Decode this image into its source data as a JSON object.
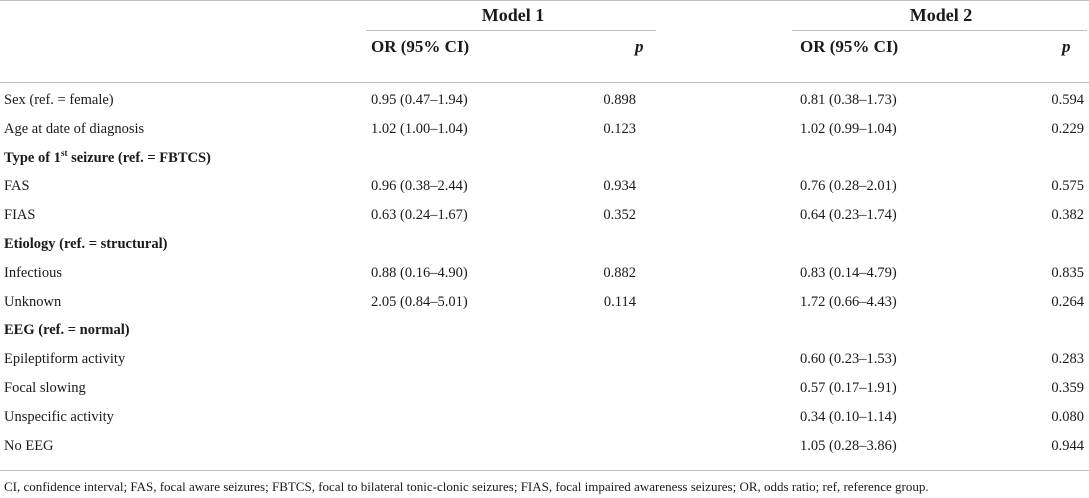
{
  "header": {
    "model1_title": "Model 1",
    "model2_title": "Model 2",
    "or_label_1": "OR (95% CI)",
    "p_label_1": "p",
    "or_label_2": "OR (95% CI)",
    "p_label_2": "p"
  },
  "rows": [
    {
      "label": "Sex (ref. = female)",
      "group": false,
      "m1_or": "0.95 (0.47–1.94)",
      "m1_p": "0.898",
      "m2_or": "0.81 (0.38–1.73)",
      "m2_p": "0.594"
    },
    {
      "label": "Age at date of diagnosis",
      "group": false,
      "m1_or": "1.02 (1.00–1.04)",
      "m1_p": "0.123",
      "m2_or": "1.02 (0.99–1.04)",
      "m2_p": "0.229"
    },
    {
      "label_pre": "Type of 1",
      "label_sup": "st",
      "label_post": " seizure (ref. = FBTCS)",
      "group": true,
      "m1_or": "",
      "m1_p": "",
      "m2_or": "",
      "m2_p": ""
    },
    {
      "label": "FAS",
      "group": false,
      "m1_or": "0.96 (0.38–2.44)",
      "m1_p": "0.934",
      "m2_or": "0.76 (0.28–2.01)",
      "m2_p": "0.575"
    },
    {
      "label": "FIAS",
      "group": false,
      "m1_or": "0.63 (0.24–1.67)",
      "m1_p": "0.352",
      "m2_or": "0.64 (0.23–1.74)",
      "m2_p": "0.382"
    },
    {
      "label": "Etiology (ref. = structural)",
      "group": true,
      "m1_or": "",
      "m1_p": "",
      "m2_or": "",
      "m2_p": ""
    },
    {
      "label": "Infectious",
      "group": false,
      "m1_or": "0.88 (0.16–4.90)",
      "m1_p": "0.882",
      "m2_or": "0.83 (0.14–4.79)",
      "m2_p": "0.835"
    },
    {
      "label": "Unknown",
      "group": false,
      "m1_or": "2.05 (0.84–5.01)",
      "m1_p": "0.114",
      "m2_or": "1.72 (0.66–4.43)",
      "m2_p": "0.264"
    },
    {
      "label": "EEG (ref. = normal)",
      "group": true,
      "m1_or": "",
      "m1_p": "",
      "m2_or": "",
      "m2_p": ""
    },
    {
      "label": "Epileptiform activity",
      "group": false,
      "m1_or": "",
      "m1_p": "",
      "m2_or": "0.60 (0.23–1.53)",
      "m2_p": "0.283"
    },
    {
      "label": "Focal slowing",
      "group": false,
      "m1_or": "",
      "m1_p": "",
      "m2_or": "0.57 (0.17–1.91)",
      "m2_p": "0.359"
    },
    {
      "label": "Unspecific activity",
      "group": false,
      "m1_or": "",
      "m1_p": "",
      "m2_or": "0.34 (0.10–1.14)",
      "m2_p": "0.080"
    },
    {
      "label": "No EEG",
      "group": false,
      "m1_or": "",
      "m1_p": "",
      "m2_or": "1.05 (0.28–3.86)",
      "m2_p": "0.944"
    }
  ],
  "footnote": "CI, confidence interval; FAS, focal aware seizures; FBTCS, focal to bilateral tonic-clonic seizures; FIAS, focal impaired awareness seizures; OR, odds ratio; ref, reference group."
}
